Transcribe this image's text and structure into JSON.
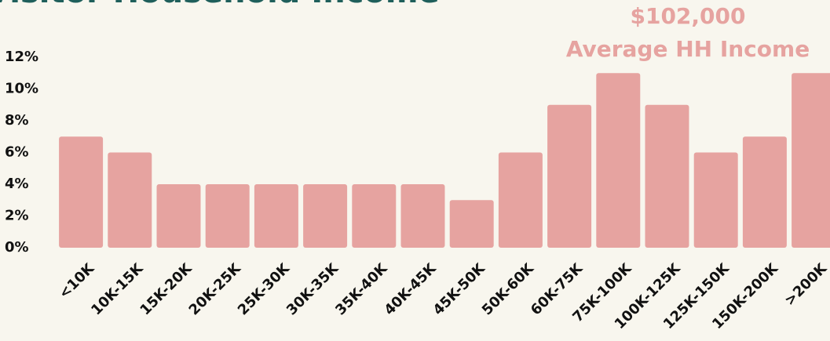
{
  "chart_data": {
    "type": "bar",
    "title": "Visitor Household Income",
    "annotation": [
      "$102,000",
      "Average HH Income"
    ],
    "categories": [
      "<10K",
      "10K-15K",
      "15K-20K",
      "20K-25K",
      "25K-30K",
      "30K-35K",
      "35K-40K",
      "40K-45K",
      "45K-50K",
      "50K-60K",
      "60K-75K",
      "75K-100K",
      "100K-125K",
      "125K-150K",
      "150K-200K",
      ">200K"
    ],
    "values": [
      7,
      6,
      4,
      4,
      4,
      4,
      4,
      4,
      3,
      6,
      9,
      11,
      9,
      6,
      7,
      11
    ],
    "color": "#e6a3a0",
    "ylim": [
      0,
      12
    ],
    "yticks": [
      {
        "value": 0,
        "label": "0%"
      },
      {
        "value": 2,
        "label": "2%"
      },
      {
        "value": 4,
        "label": "4%"
      },
      {
        "value": 6,
        "label": "6%"
      },
      {
        "value": 8,
        "label": "8%"
      },
      {
        "value": 10,
        "label": "10%"
      },
      {
        "value": 12,
        "label": "12%"
      }
    ],
    "grid": false
  }
}
